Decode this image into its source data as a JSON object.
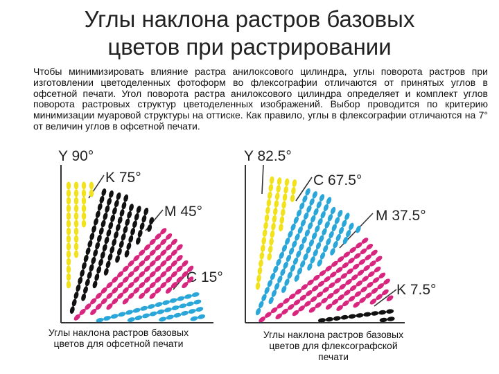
{
  "title": {
    "line1": "Углы наклона растров базовых",
    "line2": "цветов при растрировании"
  },
  "paragraph": "Чтобы минимизировать влияние растра анилоксового цилиндра, углы поворота растров при изготовлении цветоделенных фотоформ во флексографии отличаются от принятых углов в офсетной печати. Угол поворота растра анилоксового цилиндра определяет и комплект углов поворота растровых структур цветоделенных изображений. Выбор проводится по критерию минимизации муаровой структуры на оттиске. Как правило, углы в флексографии отличаются на 7° от величин углов в офсетной печати.",
  "colors": {
    "yellow": "#f2e21b",
    "black": "#111111",
    "magenta": "#d8257e",
    "cyan": "#2aa7d8",
    "axis": "#333333"
  },
  "diagrams": [
    {
      "id": "offset",
      "screens": [
        {
          "label": "Y 90°",
          "color": "yellow",
          "angle": 90
        },
        {
          "label": "K 75°",
          "color": "black",
          "angle": 75
        },
        {
          "label": "M 45°",
          "color": "magenta",
          "angle": 45
        },
        {
          "label": "C 15°",
          "color": "cyan",
          "angle": 15
        }
      ],
      "caption": [
        "Углы наклона растров базовых",
        "цветов для офсетной печати"
      ]
    },
    {
      "id": "flexo",
      "screens": [
        {
          "label": "Y 82.5°",
          "color": "yellow",
          "angle": 82.5
        },
        {
          "label": "C 67.5°",
          "color": "cyan",
          "angle": 67.5
        },
        {
          "label": "M 37.5°",
          "color": "magenta",
          "angle": 37.5
        },
        {
          "label": "K 7.5°",
          "color": "black",
          "angle": 7.5
        }
      ],
      "caption": [
        "Углы наклона растров базовых",
        "цветов для флексографской",
        "печати"
      ]
    }
  ]
}
